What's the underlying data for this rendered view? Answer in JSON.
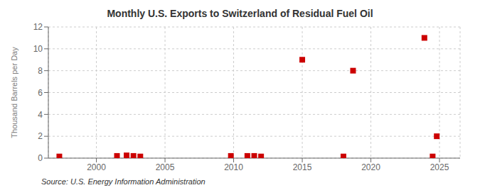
{
  "chart_data": {
    "type": "scatter",
    "title": "Monthly U.S. Exports to Switzerland of Residual Fuel Oil",
    "ylabel": "Thousand Barrels per Day",
    "annotations": [
      "Source: U.S. Energy Information Administration"
    ],
    "x": [
      1997.3,
      2001.5,
      2002.2,
      2002.7,
      2003.2,
      2009.8,
      2011.0,
      2011.5,
      2012.0,
      2015.0,
      2018.0,
      2018.7,
      2023.9,
      2024.5,
      2024.8
    ],
    "values": [
      0.15,
      0.2,
      0.25,
      0.2,
      0.15,
      0.2,
      0.2,
      0.2,
      0.15,
      9.0,
      0.15,
      8.0,
      11.0,
      0.15,
      2.0
    ],
    "color": "#cc0000",
    "marker": "square",
    "xlim": [
      1996.5,
      2026.5
    ],
    "ylim": [
      0,
      12
    ],
    "xticks": [
      2000,
      2005,
      2010,
      2015,
      2020,
      2025
    ],
    "yticks": [
      0,
      2,
      4,
      6,
      8,
      10,
      12
    ],
    "grid": true
  }
}
